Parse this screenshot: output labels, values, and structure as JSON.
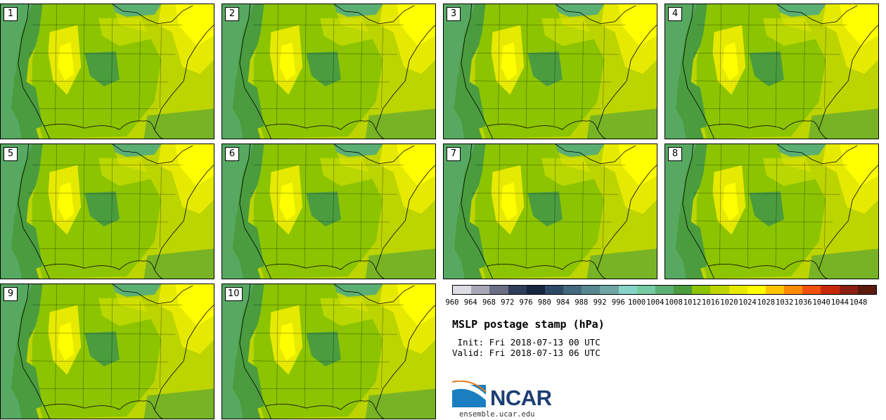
{
  "title": "MSLP postage stamp (hPa)",
  "init_label": " Init: Fri 2018-07-13 00 UTC",
  "valid_label": "Valid: Fri 2018-07-13 06 UTC",
  "logo_text": "NCAR",
  "url": "ensemble.ucar.edu",
  "members": [
    "1",
    "2",
    "3",
    "4",
    "5",
    "6",
    "7",
    "8",
    "9",
    "10"
  ],
  "colorbar": {
    "ticks": [
      "960",
      "964",
      "968",
      "972",
      "976",
      "980",
      "984",
      "988",
      "992",
      "996",
      "1000",
      "1004",
      "1008",
      "1012",
      "1016",
      "1020",
      "1024",
      "1028",
      "1032",
      "1036",
      "1040",
      "1044",
      "1048"
    ],
    "colors": [
      "#dcdce2",
      "#a7a8b5",
      "#6a6f86",
      "#2f3c5a",
      "#162440",
      "#2c4a66",
      "#42697e",
      "#56868f",
      "#6ea6a4",
      "#86d4c8",
      "#74caa2",
      "#5caf72",
      "#4a9c3e",
      "#8cc400",
      "#bcd400",
      "#e6ea00",
      "#ffff00",
      "#ffc400",
      "#ff8c00",
      "#f0500a",
      "#c8280a",
      "#8c1e14",
      "#5a1a0e"
    ]
  },
  "map_colors": {
    "low": "#4a9c3e",
    "mid": "#8cc400",
    "base": "#bcd400",
    "high": "#e6ea00",
    "peak": "#ffff00",
    "ocean_low": "#5caf72"
  }
}
